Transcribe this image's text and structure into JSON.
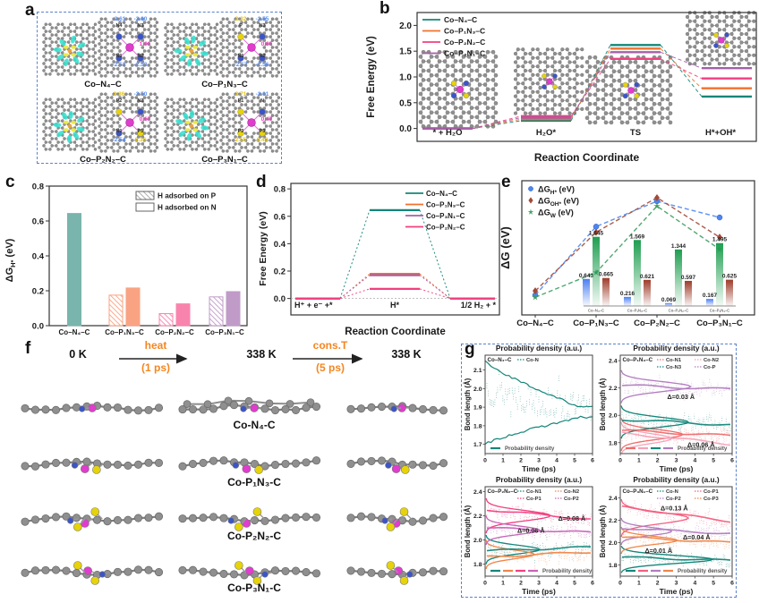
{
  "figure": {
    "panel_labels": {
      "a": "a",
      "b": "b",
      "c": "c",
      "d": "d",
      "e": "e",
      "f": "f",
      "g": "g"
    }
  },
  "panel_a": {
    "structures": [
      {
        "name": "Co–N₄–C",
        "co_charge": "1.01",
        "sites": [
          {
            "pos": "tl",
            "label": "N4",
            "charge": "-2.61",
            "type": "N"
          },
          {
            "pos": "tr",
            "label": "N3",
            "charge": "-2.60",
            "type": "N"
          },
          {
            "pos": "bl",
            "label": "N1",
            "charge": "-2.51",
            "type": "N"
          },
          {
            "pos": "br",
            "label": "N2",
            "charge": "-2.53",
            "type": "N"
          }
        ]
      },
      {
        "name": "Co–P₁N₃–C",
        "co_charge": "0.85",
        "sites": [
          {
            "pos": "tl",
            "label": "P",
            "charge": "2.32",
            "type": "P"
          },
          {
            "pos": "tr",
            "label": "N3",
            "charge": "-2.55",
            "type": "N"
          },
          {
            "pos": "bl",
            "label": "N1",
            "charge": "-2.57",
            "type": "N"
          },
          {
            "pos": "br",
            "label": "N2",
            "charge": "-2.56",
            "type": "N"
          }
        ]
      },
      {
        "name": "Co–P₂N₂–C",
        "co_charge": "0.67",
        "sites": [
          {
            "pos": "tl",
            "label": "P2",
            "charge": "2.36",
            "type": "P"
          },
          {
            "pos": "tr",
            "label": "N2",
            "charge": "-2.50",
            "type": "N"
          },
          {
            "pos": "bl",
            "label": "N1",
            "charge": "-2.54",
            "type": "N"
          },
          {
            "pos": "br",
            "label": "P1",
            "charge": "2.36",
            "type": "P"
          }
        ]
      },
      {
        "name": "Co–P₃N₁–C",
        "co_charge": "0.47",
        "sites": [
          {
            "pos": "tl",
            "label": "P1",
            "charge": "2.71",
            "type": "P"
          },
          {
            "pos": "tr",
            "label": "N",
            "charge": "-2.61",
            "type": "N"
          },
          {
            "pos": "bl",
            "label": "P2",
            "charge": "2.55",
            "type": "P"
          },
          {
            "pos": "br",
            "label": "P3",
            "charge": "2.43",
            "type": "P"
          }
        ]
      }
    ],
    "charge_colors": {
      "N": "#5b8ff5",
      "P": "#e3c414",
      "Co": "#f03cc3"
    }
  },
  "panel_f": {
    "start_temp": "0 K",
    "arrow1_label": "heat",
    "arrow1_time": "(1 ps)",
    "mid_temp": "338 K",
    "arrow2_label": "cons.T",
    "arrow2_time": "(5 ps)",
    "end_temp": "338 K",
    "row_labels": [
      "Co-N₄-C",
      "Co-P₁N₃-C",
      "Co-P₂N₂-C",
      "Co-P₃N₁-C"
    ],
    "accent_color": "#f5861f"
  },
  "chart_data": [
    {
      "id": "b",
      "type": "energy-levels",
      "panel": "b",
      "ylabel": "Free Energy (eV)",
      "xlabel": "Reaction Coordinate",
      "states": [
        "* + H₂O",
        "H₂O*",
        "TS",
        "H*+OH*"
      ],
      "ylim": [
        -0.25,
        2.25
      ],
      "yticks": [
        "0.0",
        "0.5",
        "1.0",
        "1.5",
        "2.0"
      ],
      "series": [
        {
          "name": "Co–N₄–C",
          "color": "#14867a",
          "levels": [
            0.0,
            0.15,
            1.62,
            0.62
          ]
        },
        {
          "name": "Co–P₁N₃–C",
          "color": "#f2712f",
          "levels": [
            0.0,
            0.18,
            1.55,
            0.78
          ]
        },
        {
          "name": "Co–P₂N₂–C",
          "color": "#f23f7f",
          "levels": [
            0.0,
            0.24,
            1.35,
            0.97
          ]
        },
        {
          "name": "Co–P₃N₁–C",
          "color": "#a55fa8",
          "levels": [
            0.0,
            0.21,
            1.48,
            1.17
          ]
        }
      ]
    },
    {
      "id": "c",
      "type": "bar",
      "panel": "c",
      "ylabel_parts": {
        "base": "ΔG",
        "sub": "H*",
        "rest": " (eV)"
      },
      "ylim": [
        0,
        0.8
      ],
      "yticks": [
        "0.0",
        "0.2",
        "0.4",
        "0.6",
        "0.8"
      ],
      "categories": [
        "Co–N₄–C",
        "Co–P₁N₃–C",
        "Co–P₂N₂–C",
        "Co–P₃N₁–C"
      ],
      "colors": [
        "#79b5ac",
        "#f9a383",
        "#f884ad",
        "#c09bc8"
      ],
      "legend": [
        {
          "label": "H adsorbed on P",
          "style": "hatched"
        },
        {
          "label": "H adsorbed on N",
          "style": "solid"
        }
      ],
      "series": [
        {
          "name": "H adsorbed on P",
          "values": [
            null,
            0.175,
            0.069,
            0.165
          ]
        },
        {
          "name": "H adsorbed on N",
          "values": [
            0.643,
            0.216,
            0.125,
            0.195
          ]
        }
      ]
    },
    {
      "id": "d",
      "type": "energy-levels",
      "panel": "d",
      "ylabel": "Free Energy (eV)",
      "xlabel": "Reaction Coordinate",
      "states": [
        "H⁺ + e⁻ +*",
        "H*",
        "1/2 H₂ + *"
      ],
      "ylim": [
        -0.12,
        0.84
      ],
      "yticks": [
        "0.0",
        "0.2",
        "0.4",
        "0.6",
        "0.8"
      ],
      "series": [
        {
          "name": "Co–N₄–C",
          "color": "#14867a",
          "levels": [
            0.0,
            0.645,
            0.0
          ]
        },
        {
          "name": "Co–P₁N₃–C",
          "color": "#f2712f",
          "levels": [
            0.0,
            0.18,
            0.0
          ]
        },
        {
          "name": "Co–P₃N₁–C",
          "color": "#a55fa8",
          "levels": [
            0.0,
            0.17,
            0.0
          ]
        },
        {
          "name": "Co–P₂N₂–C",
          "color": "#f23f7f",
          "levels": [
            0.0,
            0.07,
            0.0
          ]
        }
      ]
    },
    {
      "id": "e",
      "type": "scatter",
      "panel": "e",
      "ylabel": "ΔG (eV)",
      "ylim": [
        0,
        1.9
      ],
      "categories": [
        "Co–N₄–C",
        "Co–P₁N₃–C",
        "Co–P₂N₂–C",
        "Co–P₃N₁–C"
      ],
      "series": [
        {
          "name_parts": [
            "ΔG",
            "H*",
            " (eV)"
          ],
          "marker": "circle",
          "color": "#4c86f0",
          "values": [
            0.28,
            1.25,
            1.61,
            1.38
          ]
        },
        {
          "name_parts": [
            "ΔG",
            "OH*",
            " (eV)"
          ],
          "marker": "diamond",
          "color": "#a34a36",
          "values": [
            0.34,
            1.17,
            1.66,
            1.1
          ]
        },
        {
          "name_parts": [
            "ΔG",
            "W",
            " (eV)"
          ],
          "marker": "star",
          "color": "#3d9d60",
          "values": [
            0.25,
            0.6,
            1.54,
            0.93
          ]
        }
      ],
      "inset": {
        "categories": [
          "Co–N₄–C",
          "Co–P₁N₃–C",
          "Co–P₂N₂–C",
          "Co–P₃N₁–C"
        ],
        "series": [
          {
            "name": "ΔG_H*",
            "color": "#4c7ef2",
            "values": [
              0.643,
              0.216,
              0.069,
              0.167
            ]
          },
          {
            "name": "ΔG_W",
            "color": "#1f9e50",
            "values": [
              1.645,
              1.569,
              1.344,
              1.495
            ]
          },
          {
            "name": "ΔG_OH*",
            "color": "#9e3c2a",
            "values": [
              0.665,
              0.621,
              0.597,
              0.625
            ]
          }
        ]
      }
    },
    {
      "id": "g1",
      "type": "bond-length",
      "panel": "g",
      "title": "Probability density (a.u.)",
      "label": "Co–N₄–C",
      "ylabel": "Bond length (Å)",
      "xlabel": "Time (ps)",
      "ylim": [
        1.65,
        2.18
      ],
      "yticks": [
        "1.7",
        "1.8",
        "1.9",
        "2.0",
        "2.1"
      ],
      "xticks": [
        "0",
        "1",
        "2",
        "3",
        "4",
        "5",
        "6"
      ],
      "legend_bottom": "Probability density",
      "series": [
        {
          "name": "Co-N",
          "color": "#14867a",
          "start": 2.0,
          "end": 1.88,
          "spread": 0.3,
          "line": false
        }
      ],
      "envelopes": [
        {
          "color": "#14867a",
          "from": 2.15,
          "to": 1.9
        },
        {
          "color": "#14867a",
          "from": 1.7,
          "to": 1.845
        }
      ],
      "annotations": []
    },
    {
      "id": "g2",
      "type": "bond-length",
      "panel": "g",
      "title": "Probability density (a.u.)",
      "label": "Co–P₁N₃–C",
      "ylabel": "Bond length (Å)",
      "xlabel": "Time (ps)",
      "ylim": [
        1.72,
        2.44
      ],
      "yticks": [
        "1.8",
        "2.0",
        "2.2",
        "2.4"
      ],
      "xticks": [
        "0",
        "1",
        "2",
        "3",
        "4",
        "5",
        "6"
      ],
      "legend_bottom": "Probability density",
      "series": [
        {
          "name": "Co-N1",
          "color": "#ef6b6b",
          "start": 1.89,
          "end": 1.85,
          "spread": 0.22,
          "bump": {
            "y": 1.86,
            "h": 0.05,
            "amp": 0.55
          }
        },
        {
          "name": "Co-N2",
          "color": "#f6a3b8",
          "start": 1.87,
          "end": 1.79,
          "spread": 0.22,
          "bump": {
            "y": 1.83,
            "h": 0.05,
            "amp": 0.45
          }
        },
        {
          "name": "Co-N3",
          "color": "#14867a",
          "start": 1.97,
          "end": 1.93,
          "spread": 0.2,
          "bump": {
            "y": 1.95,
            "h": 0.05,
            "amp": 0.6
          }
        },
        {
          "name": "Co-P",
          "color": "#b27cc0",
          "start": 2.22,
          "end": 2.19,
          "spread": 0.18,
          "bump": {
            "y": 2.21,
            "h": 0.05,
            "amp": 0.62
          }
        }
      ],
      "annotations": [
        {
          "text": "Δ=0.03 Å",
          "fx": 0.42,
          "y": 2.12
        },
        {
          "text": "Δ=0.06 Å",
          "fx": 0.6,
          "y": 1.77
        }
      ]
    },
    {
      "id": "g3",
      "type": "bond-length",
      "panel": "g",
      "title": "Probability density (a.u.)",
      "label": "Co–P₂N₂–C",
      "ylabel": "Bond length (Å)",
      "xlabel": "Time (ps)",
      "ylim": [
        1.7,
        2.44
      ],
      "yticks": [
        "1.8",
        "2.0",
        "2.2",
        "2.4"
      ],
      "xticks": [
        "0",
        "1",
        "2",
        "3",
        "4",
        "5",
        "6"
      ],
      "legend_bottom": "Probability density",
      "series": [
        {
          "name": "Co-N1",
          "color": "#14867a",
          "start": 1.91,
          "end": 1.94,
          "spread": 0.22,
          "bump": {
            "y": 1.92,
            "h": 0.05,
            "amp": 0.5
          }
        },
        {
          "name": "Co-N2",
          "color": "#f08548",
          "start": 1.86,
          "end": 1.9,
          "spread": 0.22,
          "bump": {
            "y": 1.88,
            "h": 0.05,
            "amp": 0.45
          }
        },
        {
          "name": "Co-P1",
          "color": "#f23f7f",
          "start": 2.25,
          "end": 2.17,
          "spread": 0.18,
          "bump": {
            "y": 2.2,
            "h": 0.06,
            "amp": 0.6
          }
        },
        {
          "name": "Co-P2",
          "color": "#c863b8",
          "start": 2.1,
          "end": 2.06,
          "spread": 0.18,
          "bump": {
            "y": 2.08,
            "h": 0.05,
            "amp": 0.5
          }
        }
      ],
      "annotations": [
        {
          "text": "Δ=0.06 Å",
          "fx": 0.3,
          "y": 2.06
        },
        {
          "text": "Δ=0.08 Å",
          "fx": 0.68,
          "y": 2.16
        }
      ]
    },
    {
      "id": "g4",
      "type": "bond-length",
      "panel": "g",
      "title": "Probability density (a.u.)",
      "label": "Co–P₃N₁–C",
      "ylabel": "Bond length (Å)",
      "xlabel": "Time (ps)",
      "ylim": [
        1.7,
        2.5
      ],
      "yticks": [
        "1.8",
        "2.0",
        "2.2",
        "2.4"
      ],
      "xticks": [
        "0",
        "1",
        "2",
        "3",
        "4",
        "5",
        "6"
      ],
      "legend_bottom": "Probability density",
      "series": [
        {
          "name": "Co-N",
          "color": "#14867a",
          "start": 1.87,
          "end": 1.84,
          "spread": 0.2,
          "bump": {
            "y": 1.85,
            "h": 0.05,
            "amp": 0.82
          }
        },
        {
          "name": "Co-P1",
          "color": "#f45f80",
          "start": 2.32,
          "end": 2.19,
          "spread": 0.2,
          "bump": {
            "y": 2.22,
            "h": 0.07,
            "amp": 0.6
          }
        },
        {
          "name": "Co-P2",
          "color": "#b27cc0",
          "start": 2.13,
          "end": 2.08,
          "spread": 0.18,
          "bump": {
            "y": 2.1,
            "h": 0.05,
            "amp": 0.45
          }
        },
        {
          "name": "Co-P3",
          "color": "#f08548",
          "start": 2.05,
          "end": 2.0,
          "spread": 0.18,
          "bump": {
            "y": 2.02,
            "h": 0.05,
            "amp": 0.5
          }
        }
      ],
      "annotations": [
        {
          "text": "Δ=0.13 Å",
          "fx": 0.36,
          "y": 2.29
        },
        {
          "text": "Δ=0.04 Å",
          "fx": 0.56,
          "y": 2.03
        },
        {
          "text": "Δ=0.01 Å",
          "fx": 0.22,
          "y": 1.91
        }
      ]
    }
  ]
}
